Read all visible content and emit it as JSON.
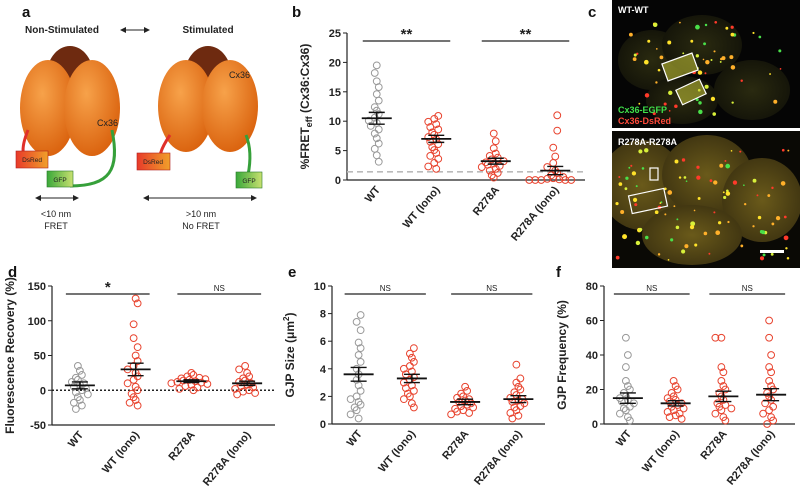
{
  "figure": {
    "labels": {
      "a": "a",
      "b": "b",
      "c": "c",
      "d": "d",
      "e": "e",
      "f": "f"
    },
    "colors": {
      "cx36": "#e8771a",
      "cx36_dark": "#7a3310",
      "dsred": "#e0302a",
      "gfp": "#36a03a",
      "wt_marker": "#999999",
      "mut_marker": "#e8442f"
    }
  },
  "schematic": {
    "non_stim_title": "Non-Stimulated",
    "stim_title": "Stimulated",
    "cx36_label_left": "Cx36",
    "cx36_label_right": "Cx36",
    "dsred_left": "DsRed",
    "dsred_right": "DsRed",
    "gfp_left": "GFP",
    "gfp_right": "GFP",
    "dist_left": "<10 nm",
    "fret_left": "FRET",
    "dist_right": ">10 nm",
    "fret_right": "No FRET"
  },
  "micrographs": {
    "top_title": "WT-WT",
    "legend_green": "Cx36-EGFP",
    "legend_red": "Cx36-DsRed",
    "bottom_title": "R278A-R278A"
  },
  "chart_data": [
    {
      "id": "b",
      "type": "scatter",
      "ylabel_main": "%FRET",
      "ylabel_sub": "eff",
      "ylabel_tail": " (Cx36:Cx36)",
      "ylim": [
        0,
        25
      ],
      "yticks": [
        "0",
        "5",
        "10",
        "15",
        "20",
        "25"
      ],
      "categories": [
        "WT",
        "WT (Iono)",
        "R278A",
        "R278A (Iono)"
      ],
      "baseline": 1.4,
      "baseline_style": "dashed-grey",
      "sig": [
        {
          "from": 0,
          "to": 1,
          "text": "**"
        },
        {
          "from": 2,
          "to": 3,
          "text": "**"
        }
      ],
      "series": [
        {
          "name": "WT",
          "mean": 10.5,
          "sem": 1.0,
          "values": [
            19.5,
            18.2,
            16.8,
            15.8,
            14.6,
            13.5,
            12.4,
            11.8,
            11.2,
            10.6,
            10.1,
            9.7,
            9.2,
            8.6,
            7.9,
            7.1,
            6.2,
            5.3,
            4.2,
            3.1
          ]
        },
        {
          "name": "WT (Iono)",
          "mean": 7.0,
          "sem": 0.6,
          "values": [
            10.9,
            10.4,
            9.9,
            9.5,
            9.0,
            8.6,
            8.1,
            7.7,
            7.3,
            6.9,
            6.5,
            6.1,
            5.6,
            5.1,
            4.6,
            4.1,
            3.6,
            2.9,
            2.3,
            1.9
          ]
        },
        {
          "name": "R278A",
          "mean": 3.2,
          "sem": 0.5,
          "values": [
            7.9,
            6.6,
            5.4,
            4.5,
            4.1,
            3.8,
            3.5,
            3.2,
            3.0,
            2.8,
            2.6,
            2.4,
            2.2,
            1.9,
            1.6,
            1.2,
            0.8,
            0.4
          ]
        },
        {
          "name": "R278A (Iono)",
          "mean": 1.6,
          "sem": 0.7,
          "values": [
            11.0,
            8.4,
            5.5,
            4.0,
            2.9,
            2.2,
            1.6,
            1.2,
            0.8,
            0.5,
            0.3,
            0.2,
            0.1,
            0.0,
            0.0,
            0.0,
            0.0,
            0.0
          ]
        }
      ]
    },
    {
      "id": "d",
      "type": "scatter",
      "ylabel": "Fluorescence Recovery (%)",
      "ylim": [
        -50,
        150
      ],
      "yticks": [
        "-50",
        "0",
        "50",
        "100",
        "150"
      ],
      "categories": [
        "WT",
        "WT (Iono)",
        "R278A",
        "R278A (Iono)"
      ],
      "baseline": 0,
      "baseline_style": "dotted-black",
      "sig": [
        {
          "from": 0,
          "to": 1,
          "text": "*"
        },
        {
          "from": 2,
          "to": 3,
          "text": "NS"
        }
      ],
      "series": [
        {
          "name": "WT",
          "mean": 7,
          "sem": 5,
          "values": [
            35,
            28,
            22,
            18,
            15,
            12,
            10,
            8,
            5,
            3,
            0,
            -3,
            -6,
            -10,
            -14,
            -18,
            -22,
            -27
          ]
        },
        {
          "name": "WT (Iono)",
          "mean": 30,
          "sem": 9,
          "values": [
            132,
            125,
            95,
            75,
            62,
            50,
            42,
            35,
            30,
            25,
            20,
            15,
            10,
            5,
            0,
            -5,
            -10,
            -14,
            -18,
            -22
          ]
        },
        {
          "name": "R278A",
          "mean": 13,
          "sem": 2,
          "values": [
            25,
            22,
            20,
            18,
            17,
            16,
            15,
            14,
            13,
            12,
            11,
            10,
            9,
            8,
            6,
            4,
            2,
            0
          ]
        },
        {
          "name": "R278A (Iono)",
          "mean": 10,
          "sem": 3,
          "values": [
            35,
            30,
            25,
            20,
            17,
            14,
            12,
            10,
            8,
            6,
            4,
            2,
            0,
            -2,
            -4,
            -6
          ]
        }
      ]
    },
    {
      "id": "e",
      "type": "scatter",
      "ylabel_main": "GJP Size (",
      "ylabel_unit": "μm",
      "ylabel_sup": "2",
      "ylabel_tail": ")",
      "ylim": [
        0,
        10
      ],
      "yticks": [
        "0",
        "2",
        "4",
        "6",
        "8",
        "10"
      ],
      "categories": [
        "WT",
        "WT (Iono)",
        "R278A",
        "R278A (Iono)"
      ],
      "baseline": null,
      "sig": [
        {
          "from": 0,
          "to": 1,
          "text": "NS"
        },
        {
          "from": 2,
          "to": 3,
          "text": "NS"
        }
      ],
      "series": [
        {
          "name": "WT",
          "mean": 3.6,
          "sem": 0.5,
          "values": [
            7.9,
            7.4,
            6.8,
            5.9,
            5.5,
            5.0,
            4.5,
            4.0,
            3.6,
            3.2,
            2.8,
            2.4,
            2.0,
            1.8,
            1.6,
            1.4,
            1.2,
            1.0,
            0.7,
            0.4
          ]
        },
        {
          "name": "WT (Iono)",
          "mean": 3.3,
          "sem": 0.3,
          "values": [
            5.5,
            5.1,
            4.8,
            4.5,
            4.2,
            4.0,
            3.8,
            3.6,
            3.4,
            3.2,
            3.0,
            2.8,
            2.6,
            2.4,
            2.2,
            2.0,
            1.8,
            1.5,
            1.2
          ]
        },
        {
          "name": "R278A",
          "mean": 1.6,
          "sem": 0.2,
          "values": [
            2.7,
            2.4,
            2.2,
            2.0,
            1.9,
            1.8,
            1.7,
            1.6,
            1.5,
            1.4,
            1.3,
            1.2,
            1.1,
            1.0,
            0.9,
            0.8,
            0.7
          ]
        },
        {
          "name": "R278A (Iono)",
          "mean": 1.8,
          "sem": 0.25,
          "values": [
            4.3,
            3.3,
            3.0,
            2.7,
            2.5,
            2.3,
            2.1,
            1.9,
            1.8,
            1.7,
            1.6,
            1.5,
            1.3,
            1.2,
            1.0,
            0.8,
            0.6,
            0.4
          ]
        }
      ]
    },
    {
      "id": "f",
      "type": "scatter",
      "ylabel": "GJP Frequency (%)",
      "ylim": [
        0,
        80
      ],
      "yticks": [
        "0",
        "20",
        "40",
        "60",
        "80"
      ],
      "categories": [
        "WT",
        "WT (Iono)",
        "R278A",
        "R278A (Iono)"
      ],
      "baseline": null,
      "sig": [
        {
          "from": 0,
          "to": 1,
          "text": "NS"
        },
        {
          "from": 2,
          "to": 3,
          "text": "NS"
        }
      ],
      "series": [
        {
          "name": "WT",
          "mean": 15,
          "sem": 3,
          "values": [
            50,
            40,
            33,
            25,
            22,
            20,
            18,
            16,
            15,
            14,
            13,
            12,
            10,
            9,
            8,
            6,
            4,
            2
          ]
        },
        {
          "name": "WT (Iono)",
          "mean": 12,
          "sem": 1.5,
          "values": [
            25,
            22,
            20,
            18,
            16,
            15,
            14,
            13,
            12,
            11,
            10,
            9,
            8,
            7,
            6,
            5,
            4,
            3
          ]
        },
        {
          "name": "R278A",
          "mean": 16,
          "sem": 3,
          "values": [
            50,
            50,
            33,
            30,
            25,
            22,
            20,
            18,
            16,
            14,
            12,
            11,
            10,
            9,
            8,
            6,
            4,
            2
          ]
        },
        {
          "name": "R278A (Iono)",
          "mean": 17,
          "sem": 3.5,
          "values": [
            60,
            50,
            40,
            33,
            30,
            25,
            22,
            20,
            18,
            16,
            14,
            12,
            10,
            8,
            6,
            4,
            2,
            0
          ]
        }
      ]
    }
  ]
}
